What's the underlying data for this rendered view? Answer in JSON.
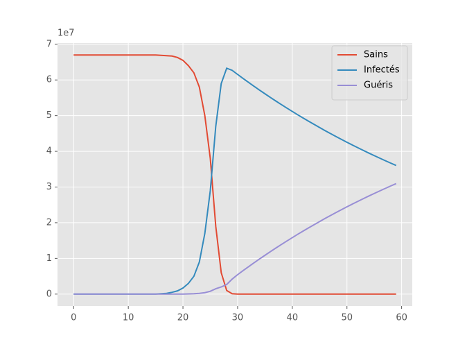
{
  "chart_data": {
    "type": "line",
    "y_offset_label": "1e7",
    "x": [
      0,
      1,
      2,
      3,
      4,
      5,
      6,
      7,
      8,
      9,
      10,
      11,
      12,
      13,
      14,
      15,
      16,
      17,
      18,
      19,
      20,
      21,
      22,
      23,
      24,
      25,
      26,
      27,
      28,
      29,
      30,
      31,
      32,
      33,
      34,
      35,
      36,
      37,
      38,
      39,
      40,
      41,
      42,
      43,
      44,
      45,
      46,
      47,
      48,
      49,
      50,
      51,
      52,
      53,
      54,
      55,
      56,
      57,
      58,
      59
    ],
    "series": [
      {
        "name": "Sains",
        "color": "#E24A33",
        "values": [
          6.7,
          6.7,
          6.7,
          6.7,
          6.7,
          6.7,
          6.7,
          6.7,
          6.7,
          6.7,
          6.7,
          6.7,
          6.7,
          6.7,
          6.7,
          6.7,
          6.69,
          6.68,
          6.67,
          6.63,
          6.55,
          6.4,
          6.2,
          5.8,
          5.0,
          3.8,
          1.9,
          0.6,
          0.1,
          0.01,
          0,
          0,
          0,
          0,
          0,
          0,
          0,
          0,
          0,
          0,
          0,
          0,
          0,
          0,
          0,
          0,
          0,
          0,
          0,
          0,
          0,
          0,
          0,
          0,
          0,
          0,
          0,
          0,
          0,
          0
        ]
      },
      {
        "name": "Infectés",
        "color": "#348ABD",
        "values": [
          0,
          0,
          0,
          0,
          0,
          0,
          0,
          0,
          0,
          0,
          0,
          0,
          0,
          0,
          0,
          0,
          0.01,
          0.02,
          0.05,
          0.09,
          0.17,
          0.3,
          0.5,
          0.9,
          1.7,
          2.9,
          4.7,
          5.9,
          6.33,
          6.27,
          6.155,
          6.043,
          5.932,
          5.824,
          5.717,
          5.613,
          5.51,
          5.409,
          5.31,
          5.213,
          5.118,
          5.024,
          4.932,
          4.842,
          4.754,
          4.667,
          4.581,
          4.498,
          4.415,
          4.334,
          4.255,
          4.177,
          4.101,
          4.026,
          3.952,
          3.88,
          3.809,
          3.739,
          3.671,
          3.604
        ]
      },
      {
        "name": "Guéris",
        "color": "#988ED5",
        "values": [
          0,
          0,
          0,
          0,
          0,
          0,
          0,
          0,
          0,
          0,
          0,
          0,
          0,
          0,
          0,
          0,
          0,
          0,
          0,
          0,
          0,
          0.005,
          0.01,
          0.02,
          0.04,
          0.08,
          0.15,
          0.2,
          0.27,
          0.42,
          0.545,
          0.657,
          0.768,
          0.876,
          0.983,
          1.087,
          1.19,
          1.291,
          1.39,
          1.487,
          1.582,
          1.676,
          1.768,
          1.858,
          1.946,
          2.033,
          2.119,
          2.202,
          2.285,
          2.366,
          2.445,
          2.523,
          2.599,
          2.674,
          2.748,
          2.82,
          2.891,
          2.961,
          3.029,
          3.096
        ]
      }
    ],
    "xlim": [
      -2.95,
      61.95
    ],
    "xticks": [
      0,
      10,
      20,
      30,
      40,
      50,
      60
    ],
    "ylim": [
      -0.335,
      7.035
    ],
    "yticks": [
      0,
      1,
      2,
      3,
      4,
      5,
      6,
      7
    ],
    "grid": true,
    "legend": "upper right",
    "background": "#E5E5E5"
  }
}
